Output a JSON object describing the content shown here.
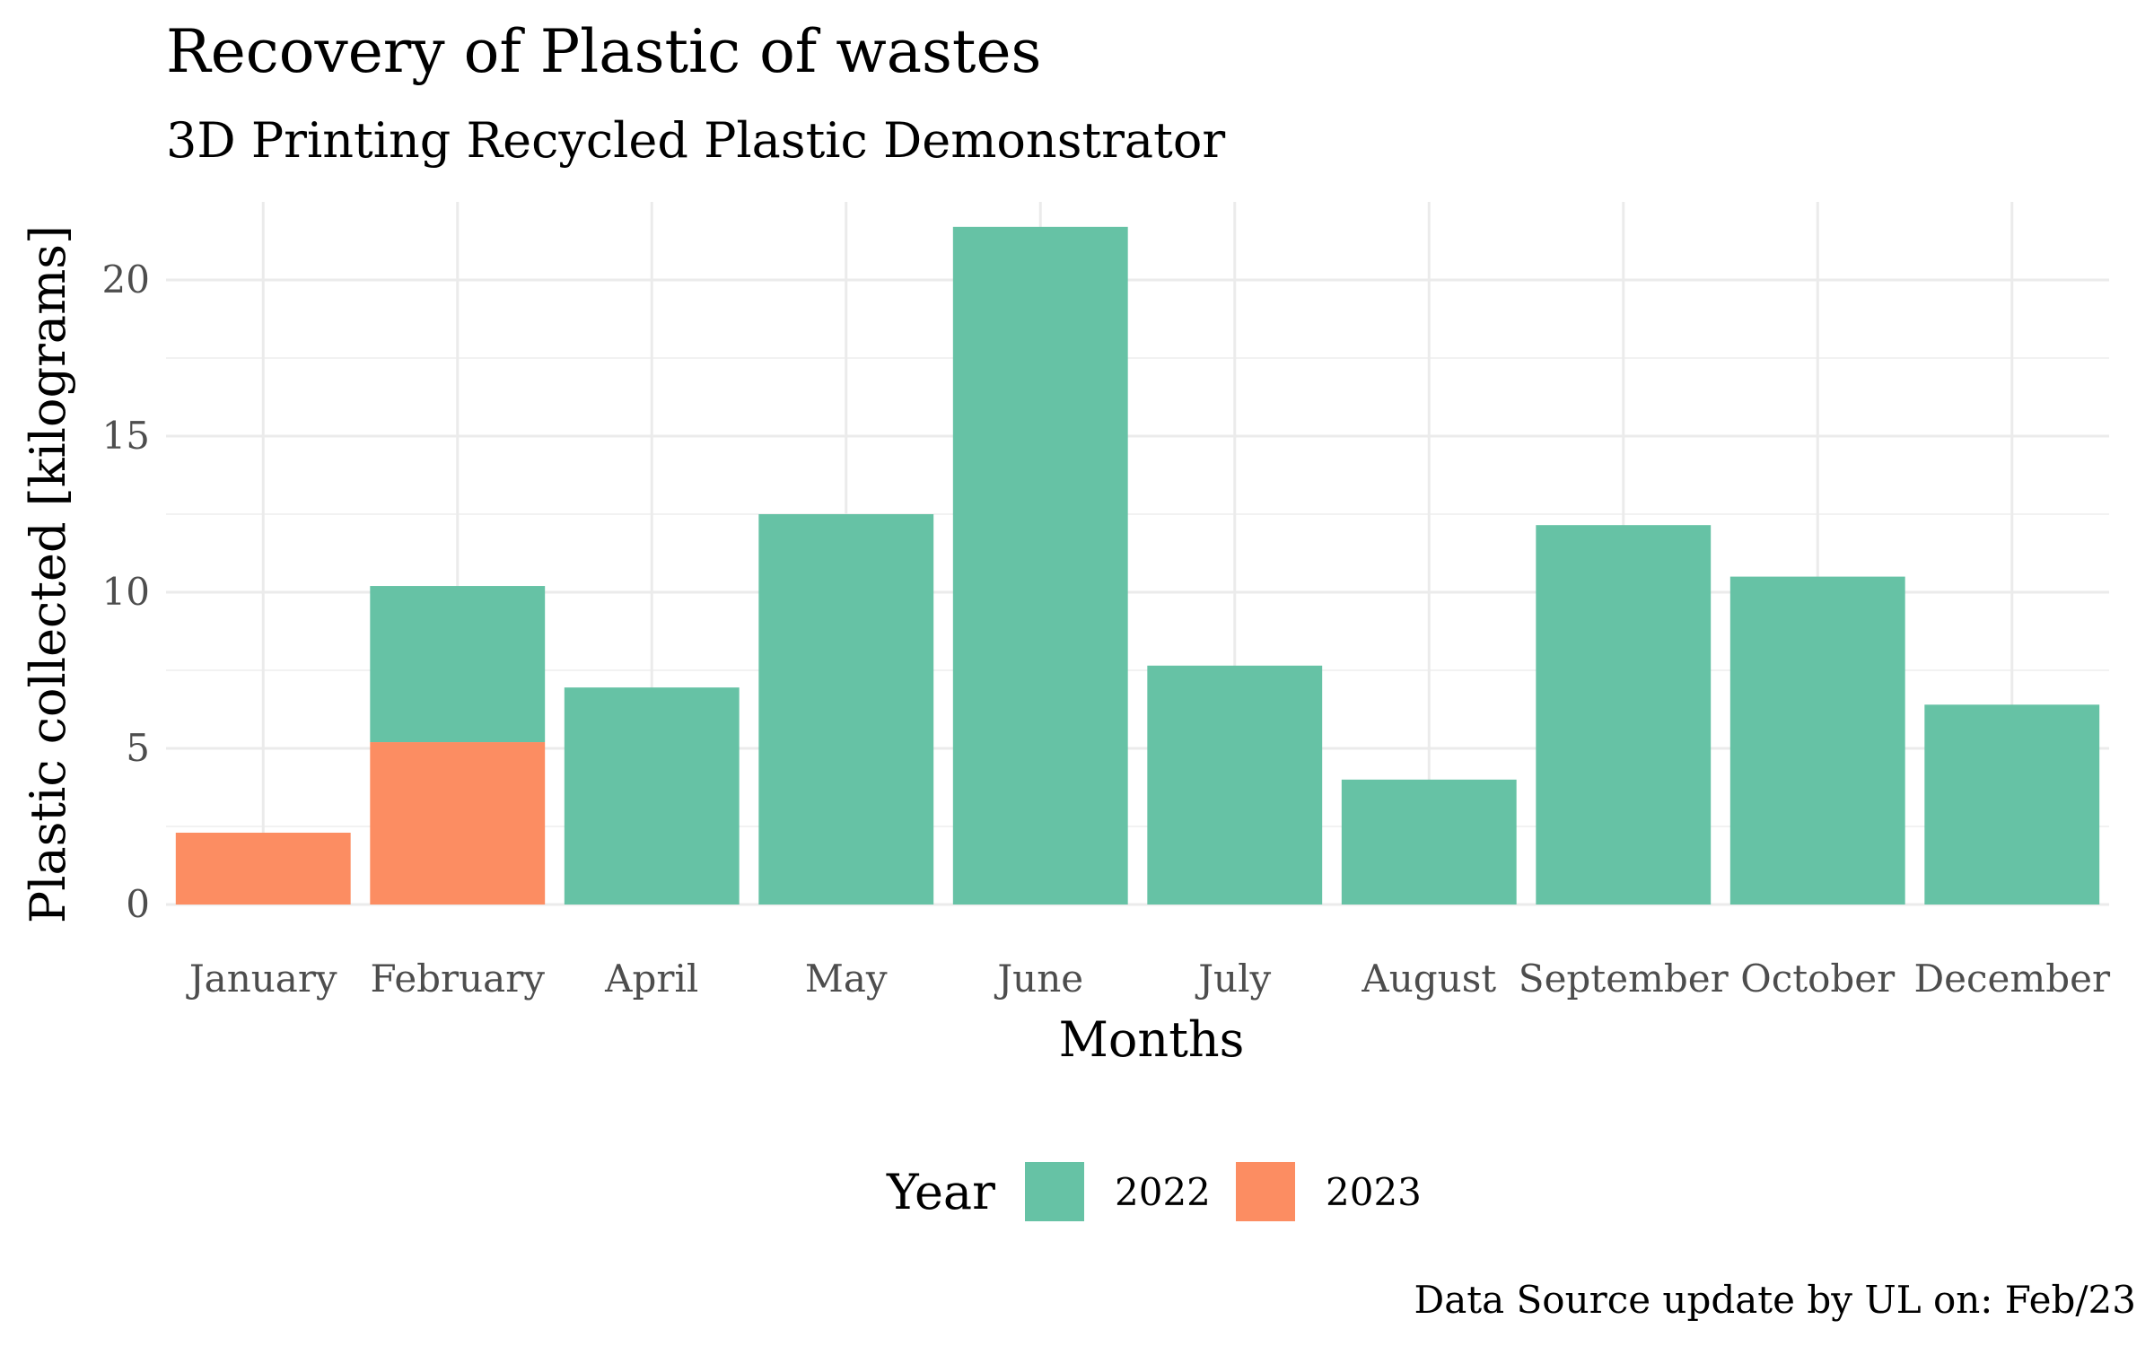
{
  "chart_data": {
    "type": "bar",
    "stacked": true,
    "title": "Recovery of Plastic of wastes",
    "subtitle": "3D Printing Recycled Plastic Demonstrator",
    "xlabel": "Months",
    "ylabel": "Plastic collected [kilograms]",
    "caption": "Data Source update by UL on:  Feb/23",
    "categories": [
      "January",
      "February",
      "April",
      "May",
      "June",
      "July",
      "August",
      "September",
      "October",
      "December"
    ],
    "series": [
      {
        "name": "2022",
        "color": "#66c2a5",
        "values": [
          0,
          5.0,
          6.95,
          12.5,
          21.7,
          7.65,
          4.0,
          12.15,
          10.5,
          6.4
        ]
      },
      {
        "name": "2023",
        "color": "#fc8d62",
        "values": [
          2.3,
          5.2,
          0,
          0,
          0,
          0,
          0,
          0,
          0,
          0
        ]
      }
    ],
    "ylim": [
      0,
      22.5
    ],
    "yticks": [
      0,
      5,
      10,
      15,
      20
    ],
    "grid": true,
    "legend": {
      "title": "Year",
      "position": "bottom"
    }
  }
}
